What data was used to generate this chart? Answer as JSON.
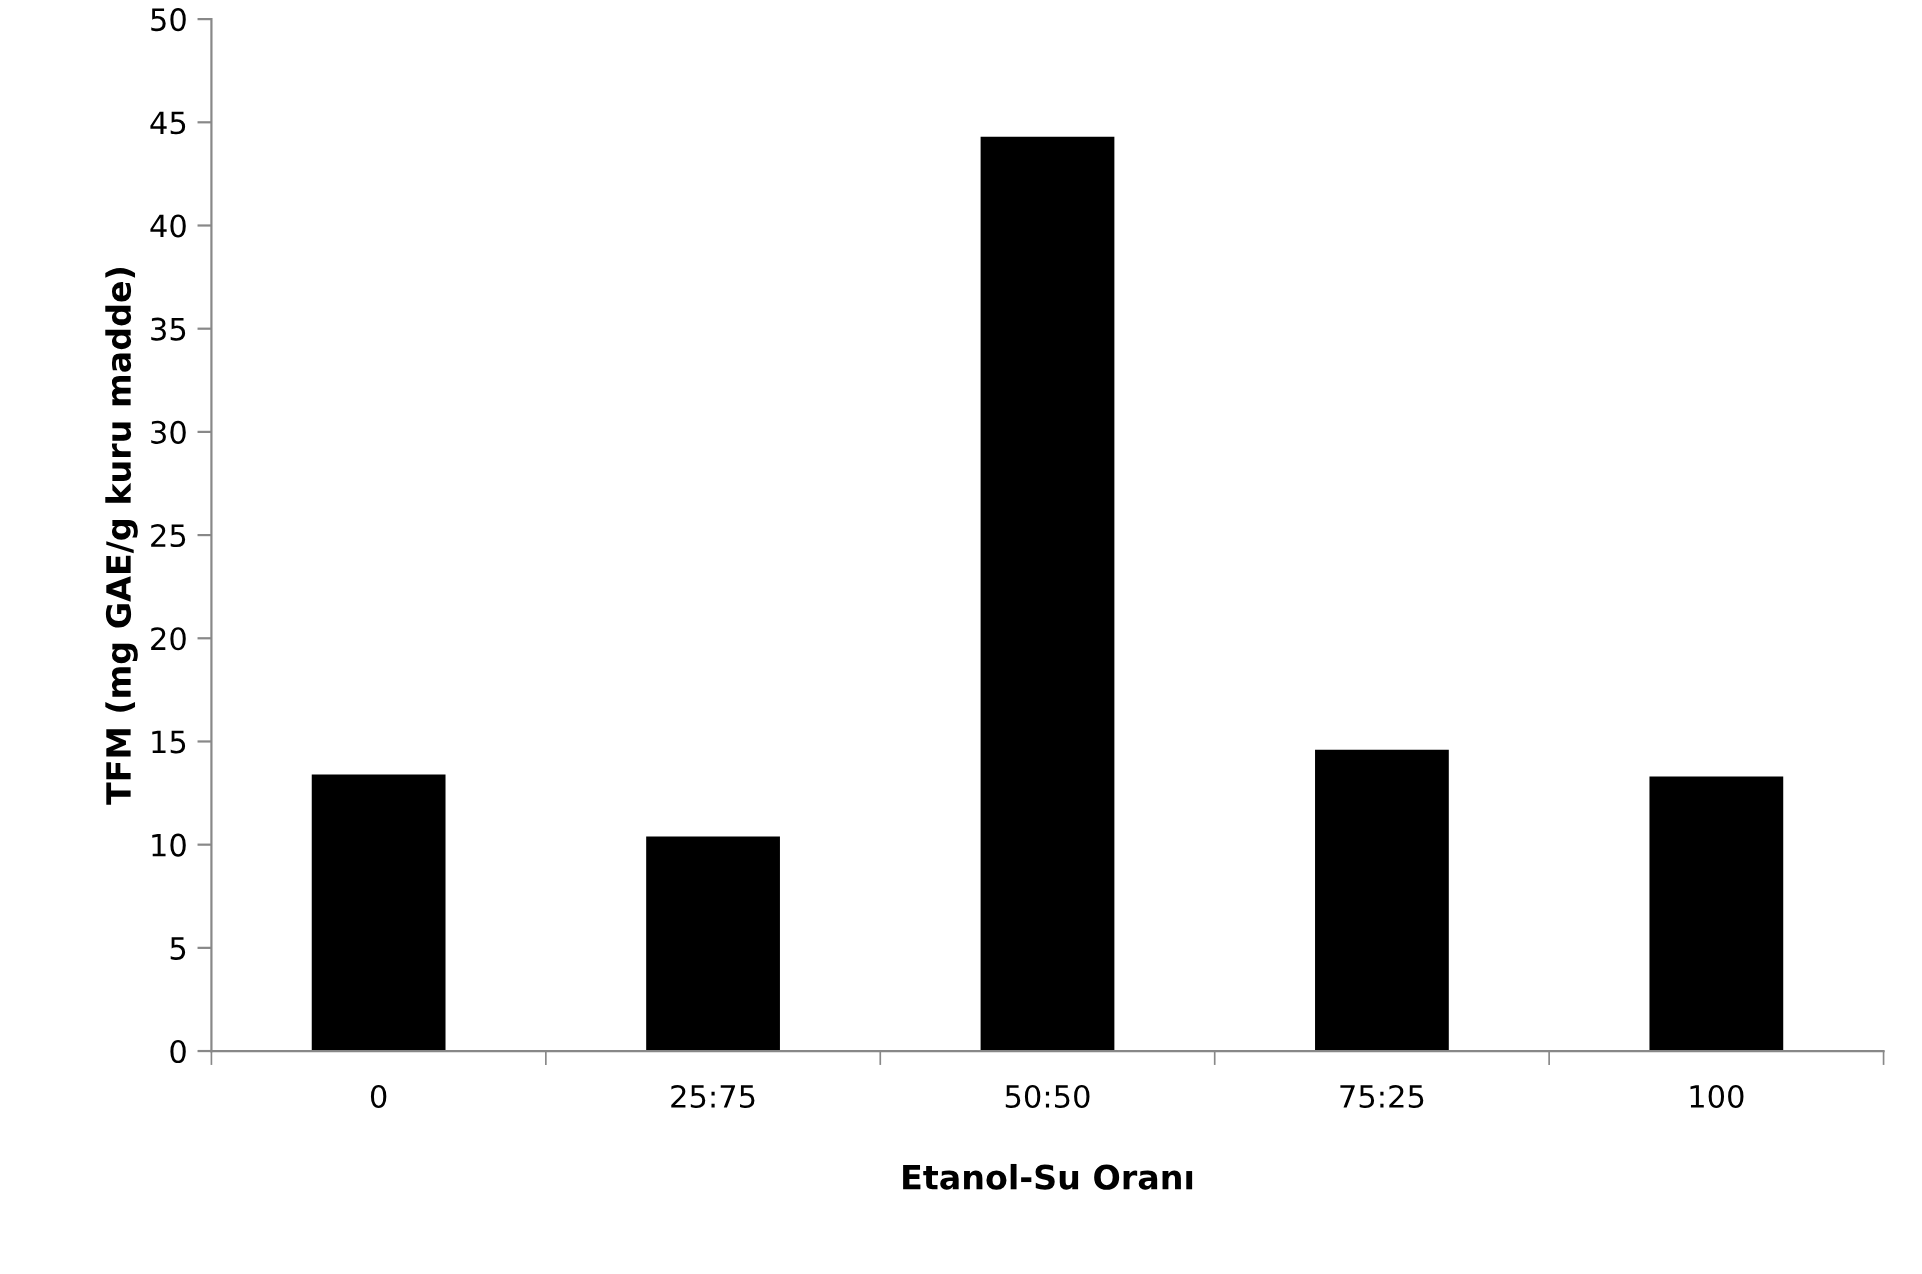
{
  "chart_data": {
    "type": "bar",
    "xlabel": "Etanol-Su Oranı",
    "ylabel": "TFM (mg GAE/g kuru madde)",
    "categories": [
      "0",
      "25:75",
      "50:50",
      "75:25",
      "100"
    ],
    "values": [
      13.4,
      10.4,
      44.3,
      14.6,
      13.3
    ],
    "color": "#000000",
    "ylim": [
      0,
      50
    ],
    "yticks": [
      0,
      5,
      10,
      15,
      20,
      25,
      30,
      35,
      40,
      45,
      50
    ],
    "grid": false,
    "legend": false
  }
}
